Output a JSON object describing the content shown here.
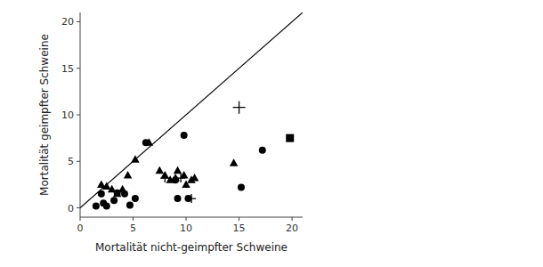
{
  "chart_data": {
    "type": "scatter",
    "xlabel": "Mortalität nicht-geimpfter Schweine",
    "ylabel": "Mortalität geimpfter Schweine",
    "xlim": [
      0,
      21
    ],
    "ylim": [
      -1,
      21
    ],
    "xticks": [
      0,
      5,
      10,
      15,
      20
    ],
    "yticks": [
      0,
      5,
      10,
      15,
      20
    ],
    "grid": false,
    "series": [
      {
        "type": "line",
        "color": "black",
        "line_style": "solid",
        "x": [
          0,
          21
        ],
        "values": [
          0,
          21
        ]
      },
      {
        "type": "scatter",
        "marker": "circle",
        "color": "black",
        "x": [
          1.5,
          2.2,
          2.5,
          2.0,
          3.2,
          3.5,
          4.2,
          4.7,
          5.2,
          6.2,
          9.0,
          9.2,
          9.8,
          10.2,
          15.2,
          17.2
        ],
        "values": [
          0.2,
          0.5,
          0.2,
          1.5,
          0.8,
          1.6,
          1.5,
          0.3,
          1.0,
          7.0,
          3.0,
          1.0,
          7.8,
          1.0,
          2.2,
          6.2
        ]
      },
      {
        "type": "scatter",
        "marker": "triangle",
        "color": "black",
        "x": [
          2.0,
          2.5,
          3.0,
          3.5,
          4.0,
          4.5,
          5.2,
          6.5,
          7.5,
          8.0,
          8.5,
          9.0,
          9.2,
          9.8,
          10.0,
          10.5,
          10.8,
          14.5
        ],
        "values": [
          2.5,
          2.3,
          2.0,
          1.5,
          2.0,
          3.5,
          5.2,
          7.0,
          4.0,
          3.5,
          3.0,
          3.2,
          4.0,
          3.5,
          2.5,
          3.0,
          3.2,
          4.8
        ]
      },
      {
        "type": "scatter",
        "marker": "plus",
        "color": "black",
        "x": [
          8.0,
          9.5,
          10.5
        ],
        "values": [
          3.2,
          3.2,
          1.0
        ]
      },
      {
        "type": "scatter",
        "marker": "plus-large",
        "color": "black",
        "x": [
          15.0
        ],
        "values": [
          10.8
        ]
      },
      {
        "type": "scatter",
        "marker": "square",
        "color": "black",
        "x": [
          19.8
        ],
        "values": [
          7.5
        ]
      }
    ]
  }
}
